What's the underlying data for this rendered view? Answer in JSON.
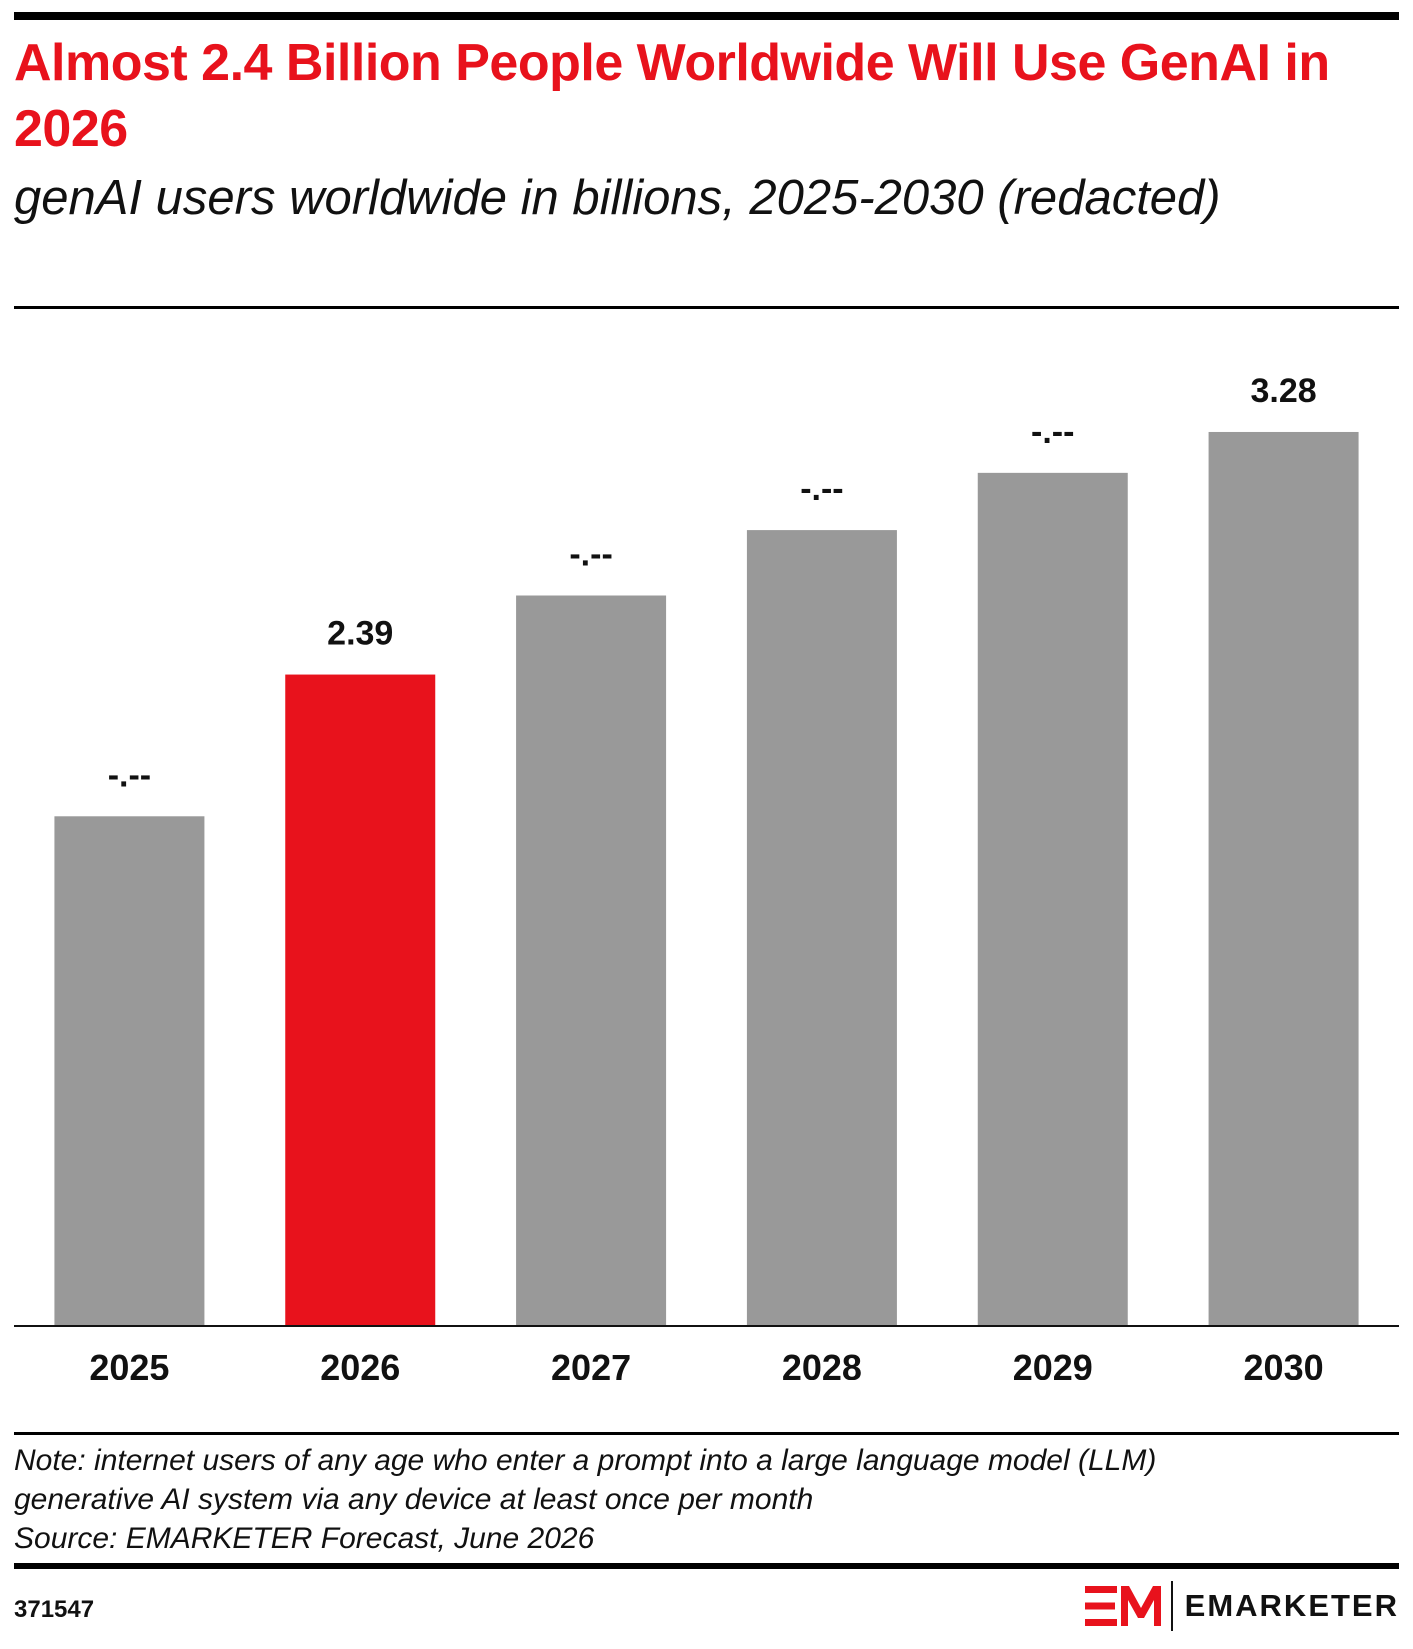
{
  "header": {
    "title": "Almost 2.4 Billion People Worldwide Will Use GenAI in 2026",
    "subtitle": "genAI users worldwide in billions, 2025-2030 (redacted)"
  },
  "chart_data": {
    "type": "bar",
    "categories": [
      "2025",
      "2026",
      "2027",
      "2028",
      "2029",
      "2030"
    ],
    "values": [
      1.87,
      2.39,
      2.68,
      2.92,
      3.13,
      3.28
    ],
    "value_labels": [
      "-.--",
      "2.39",
      "-.--",
      "-.--",
      "-.--",
      "3.28"
    ],
    "highlight_index": 1,
    "colors": {
      "default": "#999999",
      "highlight": "#E8121C"
    },
    "ylim": [
      0,
      3.5
    ],
    "grid": false,
    "legend": "none"
  },
  "footer": {
    "note_line1": "Note: internet users of any age who enter a prompt into a large language model (LLM)",
    "note_line2": "generative AI system via any device at least once per month",
    "source": "Source: EMARKETER Forecast, June 2026",
    "chart_id": "371547",
    "brand_name": "EMARKETER",
    "brand_logo_text": "EM"
  },
  "colors": {
    "accent": "#E8121C",
    "text": "#111111"
  }
}
